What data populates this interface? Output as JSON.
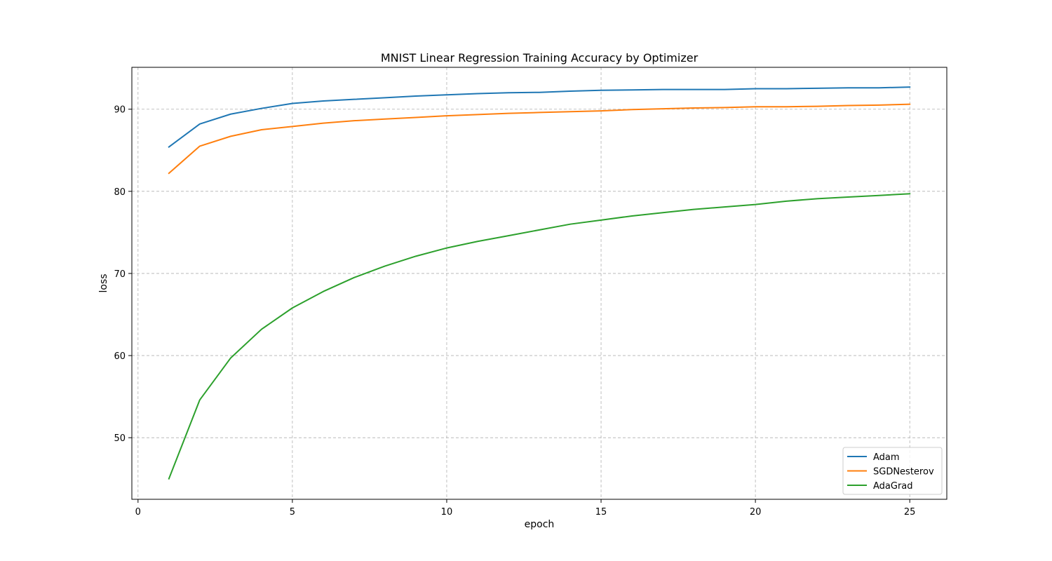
{
  "chart_data": {
    "type": "line",
    "title": "MNIST Linear Regression Training Accuracy by Optimizer",
    "xlabel": "epoch",
    "ylabel": "loss",
    "xlim": [
      -0.2,
      26.2
    ],
    "ylim": [
      42.5,
      95.1
    ],
    "xticks": [
      0,
      5,
      10,
      15,
      20,
      25
    ],
    "yticks": [
      50,
      60,
      70,
      80,
      90
    ],
    "grid": true,
    "grid_style": "dashed",
    "legend_position": "lower right",
    "x": [
      1,
      2,
      3,
      4,
      5,
      6,
      7,
      8,
      9,
      10,
      11,
      12,
      13,
      14,
      15,
      16,
      17,
      18,
      19,
      20,
      21,
      22,
      23,
      24,
      25
    ],
    "series": [
      {
        "name": "Adam",
        "color": "#1f77b4",
        "values": [
          85.4,
          88.2,
          89.4,
          90.1,
          90.7,
          91.0,
          91.2,
          91.4,
          91.6,
          91.75,
          91.9,
          92.0,
          92.05,
          92.2,
          92.3,
          92.35,
          92.4,
          92.4,
          92.4,
          92.5,
          92.5,
          92.55,
          92.6,
          92.6,
          92.7
        ]
      },
      {
        "name": "SGDNesterov",
        "color": "#ff7f0e",
        "values": [
          82.2,
          85.5,
          86.7,
          87.5,
          87.9,
          88.3,
          88.6,
          88.8,
          89.0,
          89.2,
          89.35,
          89.5,
          89.6,
          89.7,
          89.8,
          89.95,
          90.05,
          90.15,
          90.2,
          90.3,
          90.3,
          90.35,
          90.45,
          90.5,
          90.6
        ]
      },
      {
        "name": "AdaGrad",
        "color": "#2ca02c",
        "values": [
          45.0,
          54.6,
          59.7,
          63.2,
          65.8,
          67.8,
          69.5,
          70.9,
          72.1,
          73.1,
          73.9,
          74.6,
          75.3,
          76.0,
          76.5,
          77.0,
          77.4,
          77.8,
          78.1,
          78.4,
          78.8,
          79.1,
          79.3,
          79.5,
          79.7
        ]
      }
    ]
  }
}
